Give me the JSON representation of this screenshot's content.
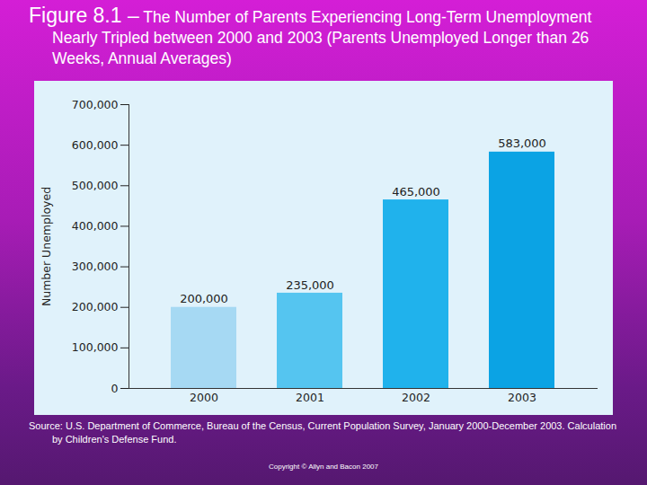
{
  "chart_data": {
    "type": "bar",
    "title": "Figure 8.1 –",
    "subtitle": "The Number of Parents Experiencing Long-Term Unemployment Nearly Tripled between 2000 and 2003 (Parents Unemployed Longer than 26 Weeks, Annual Averages)",
    "y_label": "Number Unemployed",
    "categories": [
      "2000",
      "2001",
      "2002",
      "2003"
    ],
    "values": [
      200000,
      235000,
      465000,
      583000
    ],
    "value_labels": [
      "200,000",
      "235,000",
      "465,000",
      "583,000"
    ],
    "colors": [
      "#a6d9f3",
      "#55c5f0",
      "#20b2ec",
      "#0ba3e4"
    ],
    "ylim": [
      0,
      700000
    ],
    "yticks": [
      0,
      {
        "value": 100000,
        "label": "100,000"
      },
      {
        "value": 200000,
        "label": "200,000"
      },
      {
        "value": 300000,
        "label": "300,000"
      },
      {
        "value": 400000,
        "label": "400,000"
      },
      {
        "value": 500000,
        "label": "500,000"
      },
      {
        "value": 600000,
        "label": "600,000"
      },
      {
        "value": 700000,
        "label": "700,000"
      }
    ],
    "grid": false,
    "data_labels": true,
    "annotations": [
      "Source: U.S. Department of Commerce, Bureau of the Census, Current Population Survey, January 2000-December 2003. Calculation by Children's Defense Fund.",
      "Copyright © Allyn and Bacon 2007"
    ]
  }
}
